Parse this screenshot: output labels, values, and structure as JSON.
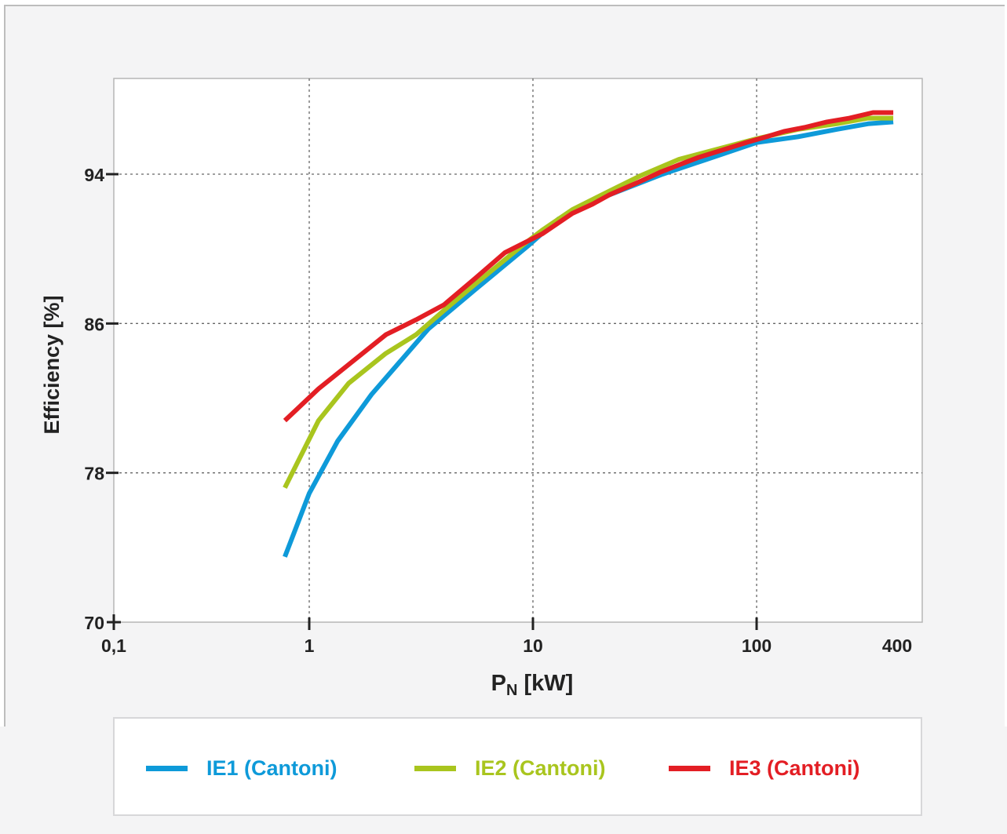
{
  "chart_data": {
    "type": "line",
    "xlabel_main": "P",
    "xlabel_sub": "N",
    "xlabel_unit": " [kW]",
    "ylabel": "Efficiency [%]",
    "x_scale": "log",
    "xlim": [
      0.1,
      400
    ],
    "ylim": [
      70,
      100
    ],
    "x_ticks": [
      {
        "value": 0.1,
        "label": "0,1"
      },
      {
        "value": 1,
        "label": "1"
      },
      {
        "value": 10,
        "label": "10"
      },
      {
        "value": 100,
        "label": "100"
      },
      {
        "value": 400,
        "label": "400"
      }
    ],
    "y_ticks": [
      {
        "value": 70,
        "label": "70"
      },
      {
        "value": 78,
        "label": "78"
      },
      {
        "value": 86,
        "label": "86"
      },
      {
        "value": 94,
        "label": "94"
      }
    ],
    "grid": true,
    "legend_position": "bottom",
    "series": [
      {
        "name": "IE1 (Cantoni)",
        "color": "#0e9ad9",
        "x": [
          0.75,
          1.0,
          1.34,
          1.9,
          3.4,
          5.5,
          9.6,
          13,
          20,
          38,
          60,
          100,
          150,
          220,
          300,
          385
        ],
        "y": [
          73.5,
          76.9,
          79.7,
          82.2,
          85.7,
          87.8,
          90.2,
          91.6,
          92.7,
          94.0,
          94.8,
          95.7,
          96.0,
          96.4,
          96.7,
          96.8
        ]
      },
      {
        "name": "IE2 (Cantoni)",
        "color": "#a9c51e",
        "x": [
          0.75,
          1.1,
          1.5,
          2.2,
          3.0,
          4.0,
          5.5,
          9.0,
          11,
          15,
          22,
          30,
          45,
          75,
          100,
          150,
          220,
          300,
          385
        ],
        "y": [
          77.2,
          80.8,
          82.8,
          84.4,
          85.4,
          86.7,
          88.1,
          90.2,
          91.0,
          92.1,
          93.1,
          93.9,
          94.8,
          95.5,
          95.9,
          96.4,
          96.7,
          97.0,
          97.0
        ]
      },
      {
        "name": "IE3 (Cantoni)",
        "color": "#e31e24",
        "x": [
          0.75,
          1.1,
          1.5,
          2.2,
          3.0,
          4.0,
          5.5,
          7.5,
          11,
          15,
          18.5,
          22,
          30,
          37,
          45,
          55,
          75,
          90,
          110,
          132,
          160,
          200,
          250,
          315,
          385
        ],
        "y": [
          80.8,
          82.5,
          83.8,
          85.4,
          86.2,
          87.0,
          88.4,
          89.8,
          90.8,
          91.9,
          92.4,
          92.9,
          93.6,
          94.1,
          94.5,
          94.9,
          95.4,
          95.7,
          96.0,
          96.3,
          96.5,
          96.8,
          97.0,
          97.3,
          97.3
        ]
      }
    ]
  }
}
